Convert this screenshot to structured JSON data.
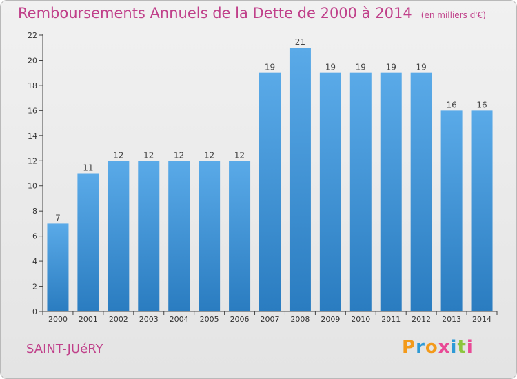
{
  "title": "Remboursements Annuels de la Dette de 2000 à 2014",
  "unit": "(en milliers d'€)",
  "city": "SAINT-JUéRY",
  "logo": "Proxiti",
  "colors": {
    "title": "#c0408a",
    "bar_top": "#5aaae8",
    "bar_bottom": "#2a7cc0"
  },
  "chart_data": {
    "type": "bar",
    "categories": [
      "2000",
      "2001",
      "2002",
      "2003",
      "2004",
      "2005",
      "2006",
      "2007",
      "2008",
      "2009",
      "2010",
      "2011",
      "2012",
      "2013",
      "2014"
    ],
    "values": [
      7,
      11,
      12,
      12,
      12,
      12,
      12,
      19,
      21,
      19,
      19,
      19,
      19,
      16,
      16
    ],
    "data_labels": [
      "7",
      "11",
      "12",
      "12",
      "12",
      "12",
      "12",
      "19",
      "21",
      "19",
      "19",
      "19",
      "19",
      "16",
      "16"
    ],
    "yticks": [
      0,
      2,
      4,
      6,
      8,
      10,
      12,
      14,
      16,
      18,
      20,
      22
    ],
    "ylim": [
      0,
      22
    ],
    "grid": false
  }
}
